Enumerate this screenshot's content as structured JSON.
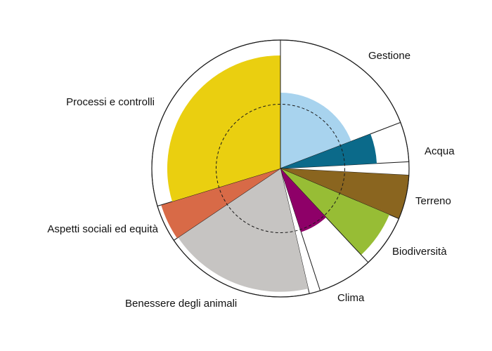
{
  "chart_data": {
    "type": "polar-area",
    "title": "",
    "rmax": 100,
    "reference_circle": 50,
    "segments": [
      {
        "label": "Gestione",
        "start_deg": 0,
        "end_deg": 69,
        "value": 59,
        "color": "#a8d3ee"
      },
      {
        "label": "Acqua",
        "start_deg": 69,
        "end_deg": 87,
        "value": 75,
        "color": "#0b6a8a"
      },
      {
        "label": "Terreno",
        "start_deg": 93,
        "end_deg": 113,
        "value": 100,
        "color": "#8a651f"
      },
      {
        "label": "Biodiversità",
        "start_deg": 113,
        "end_deg": 137,
        "value": 92,
        "color": "#97bd35"
      },
      {
        "label": "Clima",
        "start_deg": 137,
        "end_deg": 162,
        "value": 52,
        "color": "#8e0068"
      },
      {
        "label": "Benessere degli animali",
        "start_deg": 167,
        "end_deg": 236,
        "value": 96,
        "color": "#c6c4c2"
      },
      {
        "label": "Aspetti sociali ed equità",
        "start_deg": 236,
        "end_deg": 253,
        "value": 97,
        "color": "#d86a47"
      },
      {
        "label": "Processi e controlli",
        "start_deg": 253,
        "end_deg": 360,
        "value": 88,
        "color": "#eacf10"
      }
    ]
  }
}
